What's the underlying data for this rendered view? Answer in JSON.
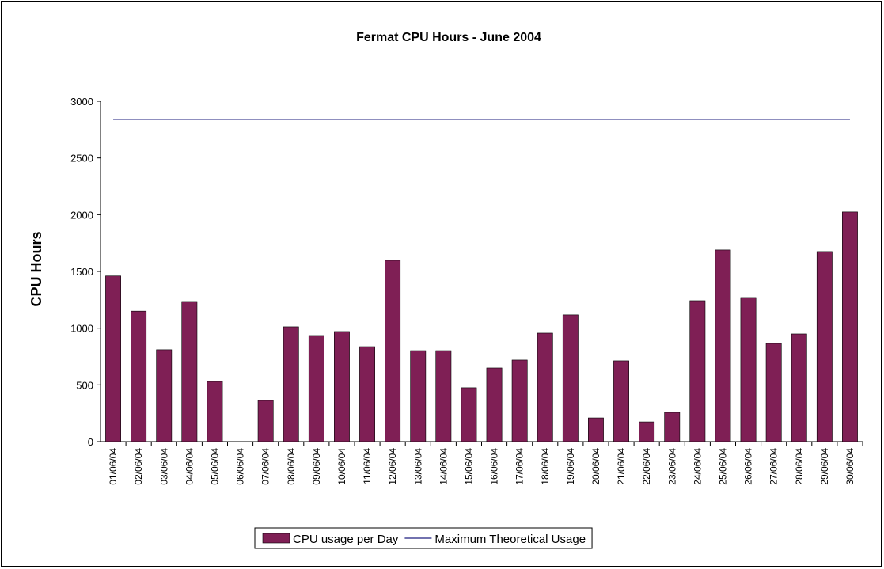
{
  "chart_data": {
    "type": "bar",
    "title": "Fermat CPU Hours - June  2004",
    "y_label": "CPU Hours",
    "categories": [
      "01/06/04",
      "02/06/04",
      "03/06/04",
      "04/06/04",
      "05/06/04",
      "06/06/04",
      "07/06/04",
      "08/06/04",
      "09/06/04",
      "10/06/04",
      "11/06/04",
      "12/06/04",
      "13/06/04",
      "14/06/04",
      "15/06/04",
      "16/06/04",
      "17/06/04",
      "18/06/04",
      "19/06/04",
      "20/06/04",
      "21/06/04",
      "22/06/04",
      "23/06/04",
      "24/06/04",
      "25/06/04",
      "26/06/04",
      "27/06/04",
      "28/06/04",
      "29/06/04",
      "30/06/04"
    ],
    "series": [
      {
        "name": "CPU usage per Day",
        "type": "bar",
        "color": "#7f1f55",
        "values": [
          1460,
          1150,
          810,
          1235,
          530,
          0,
          363,
          1012,
          935,
          970,
          837,
          1598,
          802,
          802,
          475,
          649,
          719,
          956,
          1117,
          209,
          712,
          174,
          258,
          1242,
          1689,
          1270,
          865,
          949,
          1675,
          2024
        ]
      },
      {
        "name": "Maximum Theoretical Usage",
        "type": "line",
        "color": "#1f1f7f",
        "values": [
          2840,
          2840,
          2840,
          2840,
          2840,
          2840,
          2840,
          2840,
          2840,
          2840,
          2840,
          2840,
          2840,
          2840,
          2840,
          2840,
          2840,
          2840,
          2840,
          2840,
          2840,
          2840,
          2840,
          2840,
          2840,
          2840,
          2840,
          2840,
          2840,
          2840
        ]
      }
    ],
    "ylim": [
      0,
      3000
    ],
    "yticks": [
      0,
      500,
      1000,
      1500,
      2000,
      2500,
      3000
    ],
    "grid": false,
    "legend": "bottom"
  }
}
